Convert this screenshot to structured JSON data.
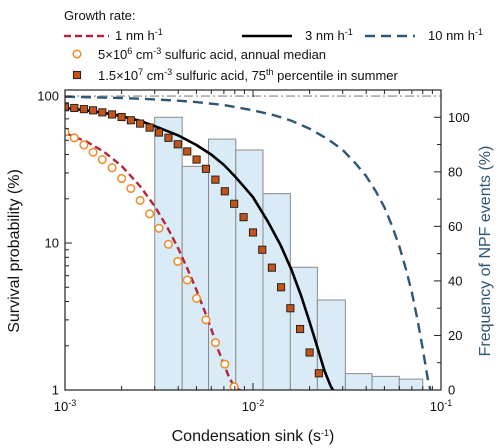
{
  "chart_data": {
    "type": "line",
    "legend": {
      "title": "Growth rate:",
      "entries": [
        {
          "key": "gr1",
          "label": "1 nm h",
          "exp": "-1"
        },
        {
          "key": "gr3",
          "label": "3 nm h",
          "exp": "-1"
        },
        {
          "key": "gr10",
          "label": "10 nm h",
          "exp": "-1"
        },
        {
          "key": "obs1",
          "label_rich": [
            [
              "5×10",
              ""
            ],
            [
              "6",
              "sup"
            ],
            [
              " cm",
              ""
            ],
            [
              "-3",
              "sup"
            ],
            [
              " sulfuric acid, annual median",
              ""
            ]
          ]
        },
        {
          "key": "obs2",
          "label_rich": [
            [
              "1.5×10",
              ""
            ],
            [
              "7",
              "sup"
            ],
            [
              " cm",
              ""
            ],
            [
              "-3",
              "sup"
            ],
            [
              " sulfuric acid, 75",
              ""
            ],
            [
              "th",
              "sup"
            ],
            [
              " percentile in summer",
              ""
            ]
          ]
        }
      ]
    },
    "x_axis": {
      "label": "Condensation sink (s",
      "label_exp": "-1",
      "label_end": ")",
      "scale": "log",
      "range": [
        0.001,
        0.1
      ],
      "ticks": [
        {
          "value": 0.001,
          "base": "10",
          "exp": "-3"
        },
        {
          "value": 0.01,
          "base": "10",
          "exp": "-2"
        },
        {
          "value": 0.1,
          "base": "10",
          "exp": "-1"
        }
      ]
    },
    "y_axis_left": {
      "label": "Survival probability (%)",
      "scale": "log",
      "range": [
        1,
        110
      ],
      "ticks": [
        {
          "value": 1,
          "label": "1"
        },
        {
          "value": 10,
          "label": "10"
        },
        {
          "value": 100,
          "label": "100"
        }
      ]
    },
    "y_axis_right": {
      "label": "Frequency of NPF events (%)",
      "scale": "linear",
      "range": [
        0,
        110
      ],
      "ticks": [
        0,
        20,
        40,
        60,
        80,
        100
      ]
    },
    "reference_line_y": 100,
    "histogram": {
      "name": "NPF event frequency",
      "bins": [
        {
          "x0": 0.003,
          "x1": 0.0042,
          "value": 100
        },
        {
          "x0": 0.0042,
          "x1": 0.0058,
          "value": 82
        },
        {
          "x0": 0.0058,
          "x1": 0.0081,
          "value": 92
        },
        {
          "x0": 0.0081,
          "x1": 0.0113,
          "value": 88
        },
        {
          "x0": 0.0113,
          "x1": 0.0158,
          "value": 72
        },
        {
          "x0": 0.0158,
          "x1": 0.022,
          "value": 45
        },
        {
          "x0": 0.022,
          "x1": 0.031,
          "value": 33
        },
        {
          "x0": 0.031,
          "x1": 0.043,
          "value": 6
        },
        {
          "x0": 0.043,
          "x1": 0.06,
          "value": 5
        },
        {
          "x0": 0.06,
          "x1": 0.08,
          "value": 4
        }
      ]
    },
    "series": [
      {
        "key": "gr1",
        "style": "dashed",
        "color": "#b5243a",
        "x": [
          0.001,
          0.0013,
          0.0016,
          0.002,
          0.0025,
          0.003,
          0.0035,
          0.004,
          0.0045,
          0.005,
          0.0055,
          0.006,
          0.0065,
          0.007,
          0.0075,
          0.008,
          0.0085,
          0.0088
        ],
        "y": [
          56,
          49,
          42,
          33.5,
          24.5,
          17.8,
          12.8,
          9.2,
          6.6,
          4.8,
          3.5,
          2.6,
          1.9,
          1.5,
          1.2,
          1.05,
          1.0,
          0.98
        ]
      },
      {
        "key": "gr3",
        "style": "solid",
        "color": "#000000",
        "x": [
          0.001,
          0.0013,
          0.0016,
          0.002,
          0.0025,
          0.003,
          0.004,
          0.005,
          0.006,
          0.007,
          0.008,
          0.009,
          0.01,
          0.012,
          0.014,
          0.016,
          0.018,
          0.02,
          0.022,
          0.024,
          0.026,
          0.027
        ],
        "y": [
          83,
          80,
          77,
          73,
          68,
          62.5,
          54,
          46.5,
          40,
          34,
          28.5,
          24,
          20.5,
          14,
          9.7,
          6.6,
          4.4,
          2.9,
          1.95,
          1.35,
          1.05,
          0.98
        ]
      },
      {
        "key": "gr10",
        "style": "dashed",
        "color": "#2e5775",
        "x": [
          0.001,
          0.002,
          0.003,
          0.004,
          0.005,
          0.007,
          0.01,
          0.013,
          0.016,
          0.02,
          0.025,
          0.03,
          0.035,
          0.04,
          0.045,
          0.05,
          0.055,
          0.06,
          0.065,
          0.07,
          0.075,
          0.08,
          0.085,
          0.088
        ],
        "y": [
          99,
          97,
          95,
          93,
          91,
          87,
          80,
          74,
          68,
          60,
          51,
          43,
          35,
          28.5,
          22.5,
          17.5,
          13,
          9.5,
          6.7,
          4.6,
          3.0,
          1.9,
          1.2,
          0.98
        ]
      },
      {
        "key": "obs1",
        "style": "open-circle",
        "color": "#ef8a26",
        "x": [
          0.001,
          0.00112,
          0.00126,
          0.00141,
          0.00158,
          0.00178,
          0.002,
          0.00224,
          0.00251,
          0.00282,
          0.00316,
          0.00355,
          0.00398,
          0.00447,
          0.00501,
          0.00562,
          0.00631,
          0.00708,
          0.00794
        ],
        "y": [
          57,
          52,
          46.5,
          41.5,
          37,
          32.5,
          27.5,
          23.5,
          19.5,
          15.8,
          12.6,
          9.8,
          7.5,
          5.6,
          4.2,
          3.0,
          2.1,
          1.5,
          1.05
        ]
      },
      {
        "key": "obs2",
        "style": "filled-square",
        "color": "#c4531a",
        "x": [
          0.001,
          0.00112,
          0.00126,
          0.00141,
          0.00158,
          0.00178,
          0.002,
          0.00224,
          0.00251,
          0.00282,
          0.00316,
          0.00355,
          0.00398,
          0.00447,
          0.00501,
          0.00562,
          0.00631,
          0.00708,
          0.00794,
          0.00891,
          0.01,
          0.0112,
          0.0126,
          0.0141,
          0.0158,
          0.0178,
          0.02,
          0.0224
        ],
        "y": [
          84,
          83,
          81.5,
          80,
          77.5,
          75,
          72,
          68.5,
          65,
          61,
          56.5,
          52,
          47,
          42,
          37,
          32,
          27,
          22.5,
          18.5,
          15,
          11.8,
          9.0,
          6.8,
          5.0,
          3.6,
          2.6,
          1.8,
          1.3
        ]
      }
    ]
  }
}
